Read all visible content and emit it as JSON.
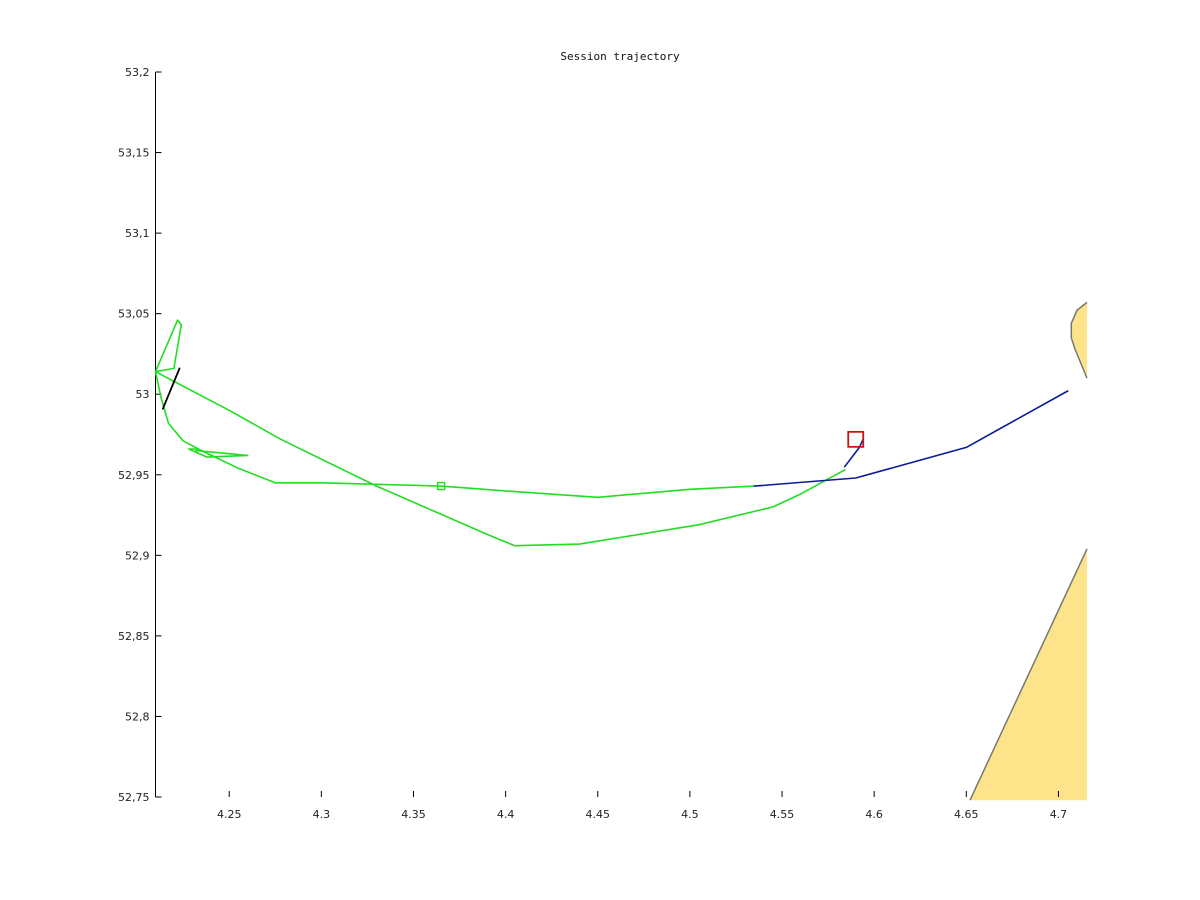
{
  "chart_data": {
    "type": "line",
    "title": "Session trajectory",
    "xlabel": "",
    "ylabel": "",
    "xlim": [
      4.21,
      4.7155
    ],
    "ylim": [
      52.75,
      53.2
    ],
    "xticks": [
      4.25,
      4.3,
      4.35,
      4.4,
      4.45,
      4.5,
      4.55,
      4.6,
      4.65,
      4.7
    ],
    "yticks": [
      52.75,
      52.8,
      52.85,
      52.9,
      52.95,
      53.0,
      53.05,
      53.1,
      53.15,
      53.2
    ],
    "xtick_labels": [
      "4.25",
      "4.3",
      "4.35",
      "4.4",
      "4.45",
      "4.5",
      "4.55",
      "4.6",
      "4.65",
      "4.7"
    ],
    "ytick_labels": [
      "52,75",
      "52,8",
      "52,85",
      "52,9",
      "52,95",
      "53",
      "53,05",
      "53,1",
      "53,15",
      "53,2"
    ],
    "grid": false,
    "colors": {
      "green": "#22dd22",
      "blue": "#0b1a99",
      "black": "#000000",
      "red": "#cc1111",
      "land": "#fde48a",
      "coast": "#777777"
    },
    "series": [
      {
        "color": "green",
        "points": [
          [
            4.437,
            52.937
          ],
          [
            4.45,
            52.936
          ],
          [
            4.5,
            52.941
          ],
          [
            4.535,
            52.943
          ]
        ]
      },
      {
        "color": "green",
        "points": [
          [
            4.437,
            52.937
          ],
          [
            4.4,
            52.94
          ],
          [
            4.365,
            52.943
          ],
          [
            4.3,
            52.945
          ],
          [
            4.275,
            52.945
          ],
          [
            4.255,
            52.954
          ],
          [
            4.235,
            52.965
          ],
          [
            4.225,
            52.971
          ],
          [
            4.217,
            52.982
          ],
          [
            4.213,
            52.998
          ],
          [
            4.21,
            53.014
          ],
          [
            4.222,
            53.046
          ],
          [
            4.224,
            53.043
          ],
          [
            4.22,
            53.016
          ],
          [
            4.21,
            53.014
          ],
          [
            4.25,
            52.99
          ],
          [
            4.278,
            52.972
          ],
          [
            4.33,
            52.943
          ],
          [
            4.39,
            52.913
          ],
          [
            4.405,
            52.906
          ],
          [
            4.44,
            52.907
          ],
          [
            4.505,
            52.919
          ],
          [
            4.545,
            52.93
          ],
          [
            4.56,
            52.938
          ],
          [
            4.584,
            52.953
          ]
        ]
      },
      {
        "color": "green",
        "points": [
          [
            4.232,
            52.965
          ],
          [
            4.26,
            52.962
          ],
          [
            4.238,
            52.961
          ],
          [
            4.228,
            52.966
          ],
          [
            4.233,
            52.966
          ]
        ]
      },
      {
        "color": "blue",
        "points": [
          [
            4.535,
            52.943
          ],
          [
            4.59,
            52.948
          ],
          [
            4.65,
            52.967
          ],
          [
            4.705,
            53.002
          ]
        ]
      },
      {
        "color": "blue",
        "points": [
          [
            4.584,
            52.955
          ],
          [
            4.592,
            52.967
          ],
          [
            4.594,
            52.972
          ]
        ]
      },
      {
        "color": "black",
        "points": [
          [
            4.223,
            53.016
          ],
          [
            4.214,
            52.991
          ]
        ]
      }
    ],
    "markers": [
      {
        "shape": "square",
        "color": "green",
        "x": 4.365,
        "y": 52.943,
        "size": "small"
      },
      {
        "shape": "square",
        "color": "red",
        "x": 4.59,
        "y": 52.972,
        "size": "large"
      }
    ],
    "land_polygons": [
      [
        [
          4.7155,
          53.057
        ],
        [
          4.71,
          53.052
        ],
        [
          4.707,
          53.044
        ],
        [
          4.707,
          53.035
        ],
        [
          4.709,
          53.028
        ],
        [
          4.7155,
          53.01
        ]
      ],
      [
        [
          4.7155,
          52.904
        ],
        [
          4.652,
          52.748
        ],
        [
          4.7155,
          52.748
        ]
      ]
    ]
  }
}
